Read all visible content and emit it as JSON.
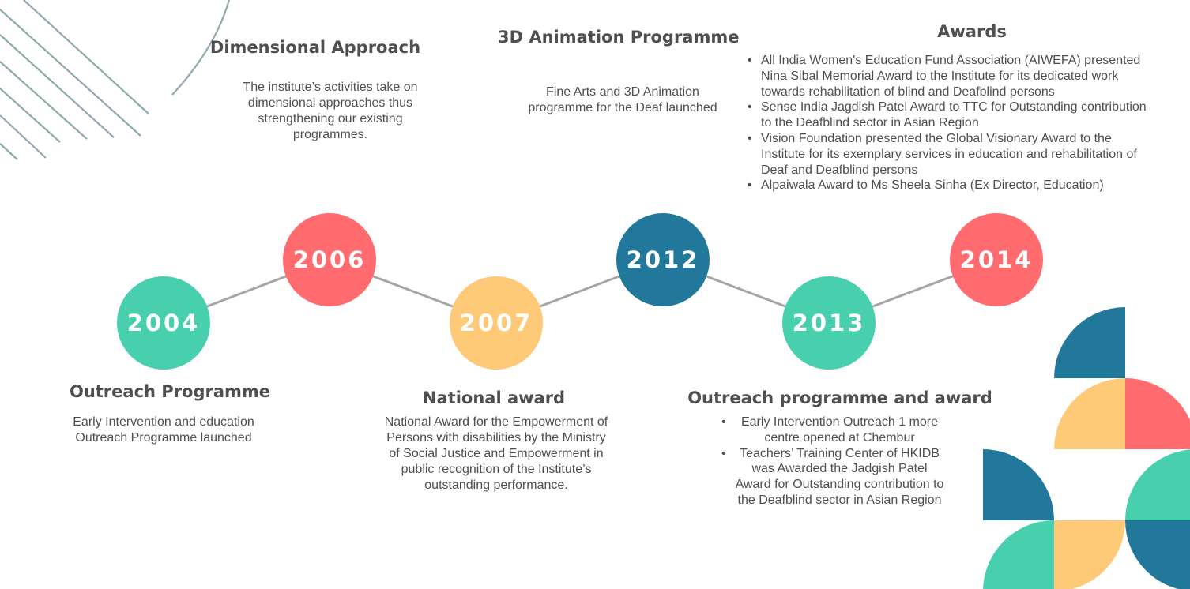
{
  "colors": {
    "teal": "#48cfae",
    "coral": "#ff6b6f",
    "yellow": "#ffca77",
    "blue": "#22789b",
    "line": "#a6a6a6",
    "stripe": "#8fa9ad"
  },
  "timeline": [
    {
      "year": "2004",
      "color": "teal"
    },
    {
      "year": "2006",
      "color": "coral"
    },
    {
      "year": "2007",
      "color": "yellow"
    },
    {
      "year": "2012",
      "color": "blue"
    },
    {
      "year": "2013",
      "color": "teal"
    },
    {
      "year": "2014",
      "color": "coral"
    }
  ],
  "events": {
    "outreach": {
      "title": "Outreach Programme",
      "text": "Early Intervention and education Outreach Programme launched"
    },
    "dimensional": {
      "title": "Dimensional Approach",
      "text": "The institute’s activities take on dimensional approaches thus strengthening our existing programmes."
    },
    "national": {
      "title": "National award",
      "text": "National Award for the Empowerment of Persons with disabilities by the Ministry of Social Justice and Empowerment in public recognition of the Institute’s outstanding performance."
    },
    "animation": {
      "title": "3D Animation Programme",
      "text": "Fine Arts and 3D Animation programme for the Deaf launched"
    },
    "outreach_award": {
      "title": "Outreach programme and award",
      "items": [
        "Early Intervention Outreach 1 more centre opened at Chembur",
        "Teachers’ Training Center of HKIDB was Awarded the Jadgish Patel Award for Outstanding contribution to the Deafblind sector in Asian Region"
      ]
    },
    "awards": {
      "title": "Awards",
      "items": [
        "All India Women's Education Fund Association (AIWEFA) presented Nina Sibal Memorial Award to the Institute for its dedicated work towards rehabilitation of blind and Deafblind persons",
        "Sense India Jagdish Patel Award to TTC for Outstanding contribution to the Deafblind sector in Asian Region",
        "Vision Foundation presented the Global Visionary Award to the Institute for its exemplary services in education and rehabilitation of Deaf and Deafblind persons",
        "Alpaiwala Award to Ms Sheela Sinha (Ex Director, Education)"
      ]
    }
  }
}
